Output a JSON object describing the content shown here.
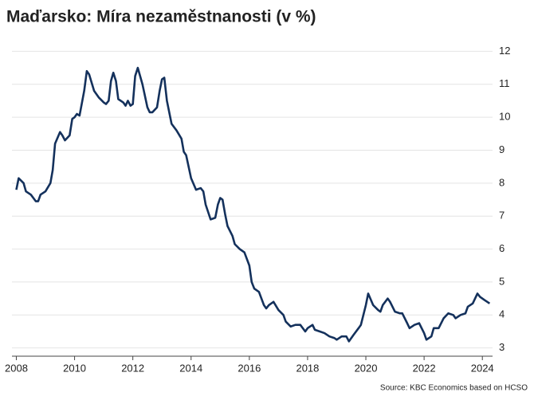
{
  "chart_data": {
    "type": "line",
    "title": "Maďarsko: Míra nezaměstnanosti (v %)",
    "source": "Source: KBC Economics based on HCSO",
    "color": "#14315c",
    "x": [
      2008.0,
      2008.08,
      2008.25,
      2008.33,
      2008.5,
      2008.67,
      2008.75,
      2008.83,
      2009.0,
      2009.17,
      2009.25,
      2009.33,
      2009.5,
      2009.58,
      2009.67,
      2009.83,
      2009.92,
      2010.0,
      2010.08,
      2010.17,
      2010.33,
      2010.42,
      2010.5,
      2010.67,
      2010.83,
      2011.0,
      2011.08,
      2011.17,
      2011.25,
      2011.33,
      2011.42,
      2011.5,
      2011.67,
      2011.75,
      2011.83,
      2011.92,
      2012.0,
      2012.08,
      2012.17,
      2012.33,
      2012.5,
      2012.58,
      2012.67,
      2012.83,
      2012.92,
      2013.0,
      2013.08,
      2013.17,
      2013.33,
      2013.5,
      2013.67,
      2013.75,
      2013.83,
      2014.0,
      2014.17,
      2014.33,
      2014.42,
      2014.5,
      2014.67,
      2014.83,
      2014.92,
      2015.0,
      2015.08,
      2015.17,
      2015.25,
      2015.42,
      2015.5,
      2015.67,
      2015.83,
      2016.0,
      2016.08,
      2016.17,
      2016.33,
      2016.5,
      2016.58,
      2016.67,
      2016.83,
      2017.0,
      2017.17,
      2017.25,
      2017.42,
      2017.58,
      2017.75,
      2017.92,
      2018.0,
      2018.17,
      2018.25,
      2018.42,
      2018.58,
      2018.75,
      2018.92,
      2019.0,
      2019.17,
      2019.33,
      2019.42,
      2019.58,
      2019.75,
      2019.83,
      2020.0,
      2020.08,
      2020.25,
      2020.42,
      2020.5,
      2020.58,
      2020.75,
      2020.83,
      2021.0,
      2021.17,
      2021.25,
      2021.42,
      2021.5,
      2021.67,
      2021.83,
      2022.0,
      2022.08,
      2022.25,
      2022.33,
      2022.5,
      2022.67,
      2022.83,
      2023.0,
      2023.08,
      2023.25,
      2023.42,
      2023.5,
      2023.67,
      2023.83,
      2023.92,
      2024.08,
      2024.25
    ],
    "values": [
      7.8,
      8.15,
      8.0,
      7.75,
      7.65,
      7.45,
      7.45,
      7.65,
      7.75,
      8.0,
      8.4,
      9.2,
      9.55,
      9.45,
      9.3,
      9.45,
      9.95,
      10.0,
      10.1,
      10.05,
      10.8,
      11.4,
      11.3,
      10.8,
      10.6,
      10.45,
      10.4,
      10.5,
      11.1,
      11.35,
      11.1,
      10.55,
      10.45,
      10.35,
      10.5,
      10.35,
      10.4,
      11.25,
      11.5,
      11.0,
      10.3,
      10.15,
      10.15,
      10.3,
      10.8,
      11.15,
      11.2,
      10.5,
      9.8,
      9.6,
      9.35,
      8.95,
      8.85,
      8.15,
      7.8,
      7.85,
      7.75,
      7.35,
      6.9,
      6.95,
      7.35,
      7.55,
      7.5,
      7.05,
      6.7,
      6.4,
      6.15,
      6.0,
      5.9,
      5.5,
      5.0,
      4.8,
      4.7,
      4.3,
      4.2,
      4.3,
      4.4,
      4.15,
      4.0,
      3.8,
      3.65,
      3.7,
      3.7,
      3.5,
      3.6,
      3.7,
      3.55,
      3.5,
      3.45,
      3.35,
      3.3,
      3.25,
      3.35,
      3.35,
      3.2,
      3.4,
      3.6,
      3.7,
      4.3,
      4.65,
      4.3,
      4.15,
      4.1,
      4.3,
      4.5,
      4.4,
      4.1,
      4.05,
      4.05,
      3.75,
      3.6,
      3.7,
      3.75,
      3.45,
      3.25,
      3.35,
      3.6,
      3.6,
      3.9,
      4.05,
      4.0,
      3.9,
      4.0,
      4.05,
      4.25,
      4.35,
      4.65,
      4.55,
      4.45,
      4.35
    ],
    "xlim": [
      2007.85,
      2024.35
    ],
    "xticks": [
      2008,
      2010,
      2012,
      2014,
      2016,
      2018,
      2020,
      2022,
      2024
    ],
    "ylim": [
      2.75,
      12.3
    ],
    "yticks": [
      3,
      4,
      5,
      6,
      7,
      8,
      9,
      10,
      11,
      12
    ],
    "grid": true
  }
}
